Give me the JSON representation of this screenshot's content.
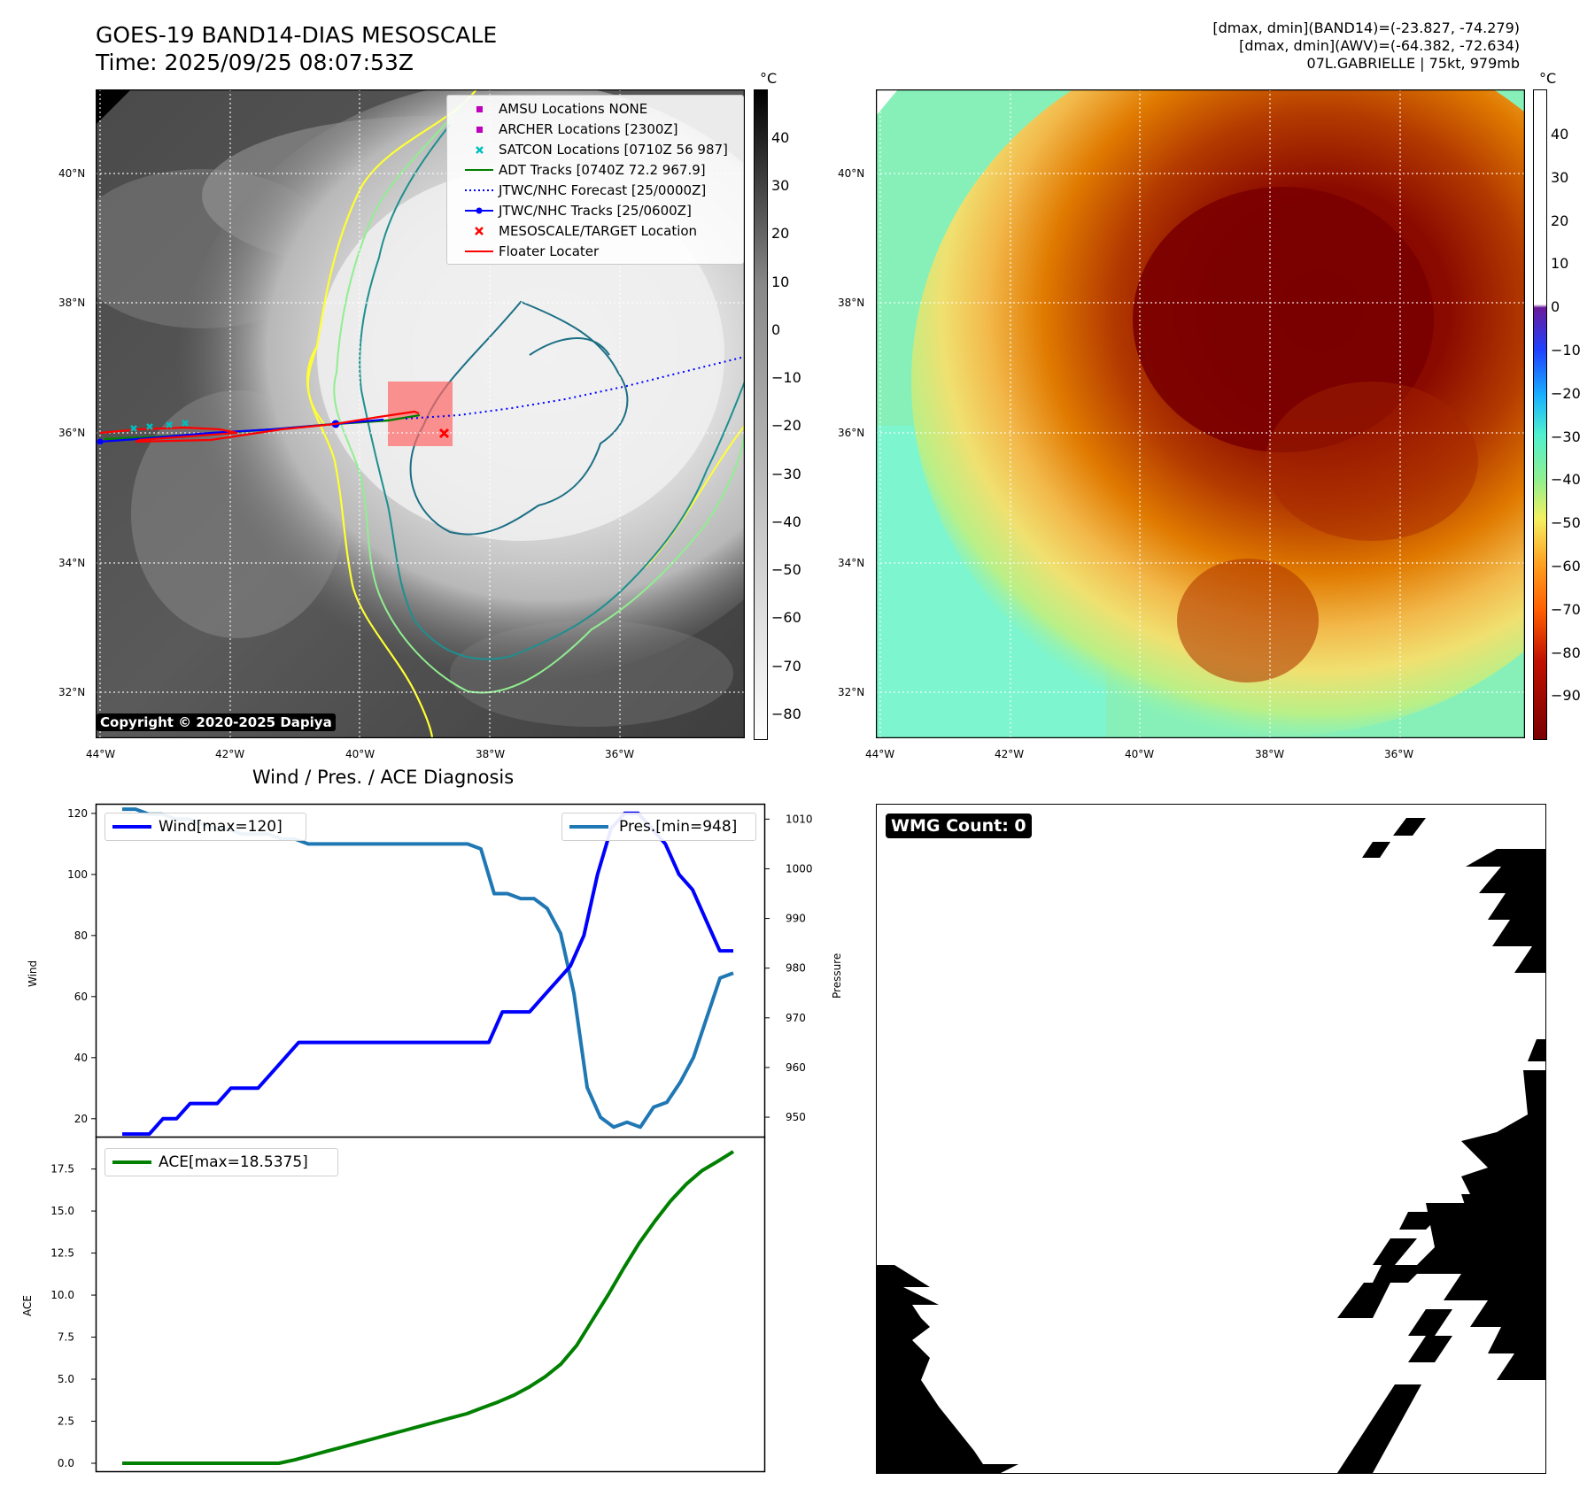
{
  "title": {
    "line1": "GOES-19 BAND14-DIAS MESOSCALE",
    "line2": "Time: 2025/09/25 08:07:53Z"
  },
  "info": {
    "line1": "[dmax, dmin](BAND14)=(-23.827, -74.279)",
    "line2": "[dmax, dmin](AWV)=(-64.382, -72.634)",
    "line3": "07L.GABRIELLE | 75kt, 979mb"
  },
  "map": {
    "lat_labels": [
      "40°N",
      "38°N",
      "36°N",
      "34°N",
      "32°N"
    ],
    "lon_labels": [
      "44°W",
      "42°W",
      "40°W",
      "38°W",
      "36°W"
    ],
    "lat_values": [
      40,
      38,
      36,
      34,
      32
    ],
    "lon_values": [
      -44,
      -42,
      -40,
      -38,
      -36
    ],
    "lon_range": [
      -44.1,
      -34.1
    ],
    "lat_range": [
      31.3,
      41.3
    ],
    "copyright": "Copyright © 2020-2025 Dapiya"
  },
  "colorbar_left": {
    "unit": "°C",
    "ticks": [
      "40",
      "30",
      "20",
      "10",
      "0",
      "−10",
      "−20",
      "−30",
      "−40",
      "−50",
      "−60",
      "−70",
      "−80"
    ],
    "range": [
      -85,
      50
    ],
    "colormap": "white-to-black (greyscale)"
  },
  "colorbar_right": {
    "unit": "°C",
    "ticks": [
      "40",
      "30",
      "20",
      "10",
      "0",
      "−10",
      "−20",
      "−30",
      "−40",
      "−50",
      "−60",
      "−70",
      "−80",
      "−90"
    ],
    "range": [
      -100,
      50
    ],
    "colormap": "white above 0; purple-blue-cyan-green-yellow-orange-red-maroon below 0"
  },
  "map_legend": [
    {
      "label": "AMSU Locations NONE",
      "symbol": "square",
      "color": "#bf00bf"
    },
    {
      "label": "ARCHER Locations [2300Z]",
      "symbol": "square",
      "color": "#bf00bf"
    },
    {
      "label": "SATCON Locations [0710Z 56 987]",
      "symbol": "x",
      "color": "#00bfbf"
    },
    {
      "label": "ADT Tracks [0740Z 72.2 967.9]",
      "symbol": "line",
      "color": "#007f00"
    },
    {
      "label": "JTWC/NHC Forecast [25/0000Z]",
      "symbol": "dotted",
      "color": "#0000ff"
    },
    {
      "label": "JTWC/NHC Tracks [25/0600Z]",
      "symbol": "line-dot",
      "color": "#0000ff"
    },
    {
      "label": "MESOSCALE/TARGET Location",
      "symbol": "x",
      "color": "#ff0000"
    },
    {
      "label": "Floater Locater",
      "symbol": "line",
      "color": "#ff0000"
    }
  ],
  "wind_panel": {
    "title": "Wind / Pres. / ACE Diagnosis",
    "ylabel_left": "Wind",
    "ylabel_right": "Pressure",
    "wind_legend": "Wind[max=120]",
    "pres_legend": "Pres.[min=948]",
    "wind_color": "#0000ff",
    "pres_color": "#1f77b4"
  },
  "ace_panel": {
    "ylabel": "ACE",
    "legend": "ACE[max=18.5375]",
    "color": "#008000"
  },
  "wmg": {
    "badge": "WMG Count: 0"
  },
  "chart_data": [
    {
      "type": "line",
      "title": "Wind / Pres. / ACE Diagnosis",
      "ylabel": "Wind",
      "ylim": [
        14,
        123
      ],
      "yticks": [
        20,
        40,
        60,
        80,
        100,
        120
      ],
      "series": [
        {
          "name": "Wind[max=120]",
          "axis": "left",
          "values": [
            15,
            15,
            15,
            20,
            20,
            25,
            25,
            25,
            30,
            30,
            30,
            35,
            40,
            45,
            45,
            45,
            45,
            45,
            45,
            45,
            45,
            45,
            45,
            45,
            45,
            45,
            45,
            45,
            55,
            55,
            55,
            60,
            65,
            70,
            80,
            100,
            115,
            120,
            120,
            115,
            110,
            100,
            95,
            85,
            75,
            75
          ]
        }
      ]
    },
    {
      "type": "line",
      "ylabel": "Pressure",
      "ylim": [
        946,
        1013
      ],
      "yticks": [
        950,
        960,
        970,
        980,
        990,
        1000,
        1010
      ],
      "series": [
        {
          "name": "Pres.[min=948]",
          "axis": "right",
          "values": [
            1012,
            1012,
            1011,
            1011,
            1010,
            1010,
            1009,
            1008,
            1008,
            1007,
            1007,
            1007,
            1006,
            1006,
            1005,
            1005,
            1005,
            1005,
            1005,
            1005,
            1005,
            1005,
            1005,
            1005,
            1005,
            1005,
            1005,
            1004,
            995,
            995,
            994,
            994,
            992,
            987,
            975,
            956,
            950,
            948,
            949,
            948,
            952,
            953,
            957,
            962,
            970,
            978,
            979
          ]
        }
      ]
    },
    {
      "type": "line",
      "ylabel": "ACE",
      "ylim": [
        -0.5,
        19.4
      ],
      "yticks": [
        0.0,
        2.5,
        5.0,
        7.5,
        10.0,
        12.5,
        15.0,
        17.5
      ],
      "series": [
        {
          "name": "ACE[max=18.5375]",
          "values": [
            0,
            0,
            0,
            0,
            0,
            0,
            0,
            0,
            0,
            0,
            0,
            0.2,
            0.45,
            0.7,
            0.95,
            1.2,
            1.45,
            1.7,
            1.95,
            2.2,
            2.45,
            2.7,
            2.95,
            3.3,
            3.65,
            4.05,
            4.55,
            5.15,
            5.9,
            7.0,
            8.5,
            10.0,
            11.6,
            13.1,
            14.4,
            15.6,
            16.6,
            17.4,
            17.95,
            18.5375
          ]
        }
      ]
    }
  ]
}
